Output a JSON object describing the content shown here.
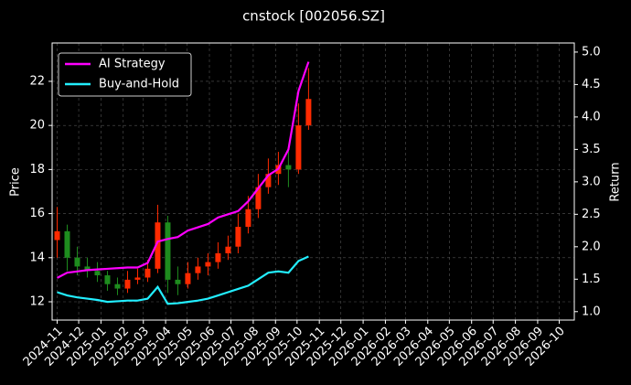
{
  "chart_data": {
    "type": "candlestick",
    "title": "cnstock [002056.SZ]",
    "ylabel": "Price",
    "y2label": "Return",
    "x": [
      "2024-11-01",
      "2024-11-15",
      "2024-11-29",
      "2024-12-13",
      "2024-12-27",
      "2025-01-10",
      "2025-01-24",
      "2025-02-07",
      "2025-02-21",
      "2025-03-07",
      "2025-03-21",
      "2025-04-04",
      "2025-04-18",
      "2025-05-02",
      "2025-05-16",
      "2025-05-30",
      "2025-06-13",
      "2025-06-27",
      "2025-07-11",
      "2025-07-25",
      "2025-08-08",
      "2025-08-22",
      "2025-09-05",
      "2025-09-19",
      "2025-10-03",
      "2025-10-17"
    ],
    "open": [
      14.8,
      15.2,
      14.0,
      13.6,
      13.4,
      13.2,
      12.8,
      12.6,
      13.0,
      13.1,
      13.5,
      15.6,
      13.0,
      12.8,
      13.3,
      13.6,
      13.8,
      14.2,
      14.5,
      15.4,
      16.2,
      17.2,
      17.8,
      18.2,
      18.0,
      20.0
    ],
    "high": [
      16.3,
      15.5,
      14.5,
      14.0,
      13.8,
      13.4,
      13.1,
      13.4,
      13.5,
      13.9,
      16.4,
      15.9,
      13.6,
      13.8,
      14.0,
      14.2,
      14.7,
      15.0,
      16.0,
      16.8,
      17.8,
      18.5,
      18.8,
      18.9,
      21.0,
      22.6
    ],
    "low": [
      14.0,
      13.4,
      13.2,
      13.1,
      12.9,
      12.5,
      12.3,
      12.4,
      12.8,
      12.9,
      13.3,
      12.4,
      12.3,
      12.6,
      13.0,
      13.2,
      13.5,
      13.9,
      14.2,
      15.1,
      15.8,
      16.9,
      17.3,
      17.2,
      17.8,
      19.8
    ],
    "close": [
      15.2,
      14.0,
      13.6,
      13.4,
      13.2,
      12.8,
      12.6,
      13.0,
      13.1,
      13.5,
      15.6,
      13.0,
      12.8,
      13.3,
      13.6,
      13.8,
      14.2,
      14.5,
      15.4,
      16.2,
      17.2,
      17.8,
      18.2,
      18.0,
      20.0,
      21.2
    ],
    "up_color": "#ff2a00",
    "down_color": "#1e8c1e",
    "series": [
      {
        "name": "AI Strategy",
        "color": "#ff00ff",
        "axis": "y2",
        "values": [
          1.52,
          1.6,
          1.62,
          1.64,
          1.65,
          1.66,
          1.67,
          1.68,
          1.68,
          1.75,
          2.08,
          2.12,
          2.15,
          2.25,
          2.3,
          2.35,
          2.45,
          2.5,
          2.55,
          2.7,
          2.9,
          3.1,
          3.2,
          3.5,
          4.4,
          4.85
        ]
      },
      {
        "name": "Buy-and-Hold",
        "color": "#22eeff",
        "axis": "y2",
        "values": [
          1.3,
          1.25,
          1.22,
          1.2,
          1.18,
          1.15,
          1.16,
          1.17,
          1.17,
          1.2,
          1.38,
          1.12,
          1.13,
          1.15,
          1.17,
          1.2,
          1.25,
          1.3,
          1.35,
          1.4,
          1.5,
          1.6,
          1.62,
          1.6,
          1.78,
          1.85
        ]
      }
    ],
    "xlim": [
      "2024-10-25",
      "2026-10-22"
    ],
    "xticks": [
      "2024-11",
      "2024-12",
      "2025-01",
      "2025-02",
      "2025-03",
      "2025-04",
      "2025-05",
      "2025-06",
      "2025-07",
      "2025-08",
      "2025-09",
      "2025-10",
      "2025-11",
      "2025-12",
      "2026-01",
      "2026-02",
      "2026-03",
      "2026-04",
      "2026-05",
      "2026-06",
      "2026-07",
      "2026-08",
      "2026-09",
      "2026-10"
    ],
    "ylim": [
      11.17,
      23.74
    ],
    "yticks": [
      12,
      14,
      16,
      18,
      20,
      22
    ],
    "y2lim": [
      0.87,
      5.14
    ],
    "y2ticks": [
      {
        "value": 1,
        "label": "1.0"
      },
      1.5,
      {
        "value": 2,
        "label": "2.0"
      },
      2.5,
      {
        "value": 3,
        "label": "3.0"
      },
      3.5,
      {
        "value": 4,
        "label": "4.0"
      },
      4.5,
      {
        "value": 5,
        "label": "5.0"
      }
    ],
    "grid": true,
    "legend": "upper left"
  }
}
